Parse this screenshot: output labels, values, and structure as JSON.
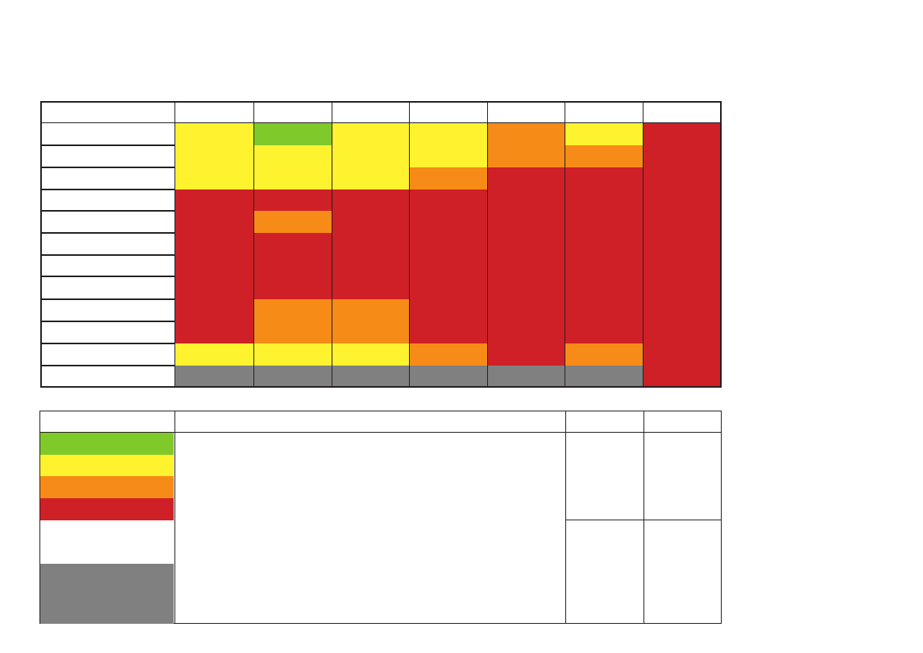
{
  "colors": {
    "green": "#7fc92a",
    "yellow": "#fff22f",
    "orange": "#f68b17",
    "red": "#d02027",
    "grey": "#808080",
    "white": "#ffffff",
    "border": "#231f20"
  },
  "matrix": {
    "column_count": 7,
    "row_count": 12,
    "columns": [
      [
        {
          "color": "yellow",
          "start": 0,
          "span": 3
        },
        {
          "color": "red",
          "start": 3,
          "span": 7
        },
        {
          "color": "yellow",
          "start": 10,
          "span": 1
        },
        {
          "color": "grey",
          "start": 11,
          "span": 1
        }
      ],
      [
        {
          "color": "green",
          "start": 0,
          "span": 1
        },
        {
          "color": "yellow",
          "start": 1,
          "span": 2
        },
        {
          "color": "red",
          "start": 3,
          "span": 1
        },
        {
          "color": "orange",
          "start": 4,
          "span": 1
        },
        {
          "color": "red",
          "start": 5,
          "span": 3
        },
        {
          "color": "orange",
          "start": 8,
          "span": 2
        },
        {
          "color": "yellow",
          "start": 10,
          "span": 1
        },
        {
          "color": "grey",
          "start": 11,
          "span": 1
        }
      ],
      [
        {
          "color": "yellow",
          "start": 0,
          "span": 3
        },
        {
          "color": "red",
          "start": 3,
          "span": 5
        },
        {
          "color": "orange",
          "start": 8,
          "span": 2
        },
        {
          "color": "yellow",
          "start": 10,
          "span": 1
        },
        {
          "color": "grey",
          "start": 11,
          "span": 1
        }
      ],
      [
        {
          "color": "yellow",
          "start": 0,
          "span": 2
        },
        {
          "color": "orange",
          "start": 2,
          "span": 1
        },
        {
          "color": "red",
          "start": 3,
          "span": 7
        },
        {
          "color": "orange",
          "start": 10,
          "span": 1
        },
        {
          "color": "grey",
          "start": 11,
          "span": 1
        }
      ],
      [
        {
          "color": "orange",
          "start": 0,
          "span": 2
        },
        {
          "color": "red",
          "start": 2,
          "span": 9
        },
        {
          "color": "grey",
          "start": 11,
          "span": 1
        }
      ],
      [
        {
          "color": "yellow",
          "start": 0,
          "span": 1
        },
        {
          "color": "orange",
          "start": 1,
          "span": 1
        },
        {
          "color": "red",
          "start": 2,
          "span": 8
        },
        {
          "color": "orange",
          "start": 10,
          "span": 1
        },
        {
          "color": "grey",
          "start": 11,
          "span": 1
        }
      ],
      [
        {
          "color": "red",
          "start": 0,
          "span": 12
        }
      ]
    ]
  },
  "legend": {
    "swatches": [
      "green",
      "yellow",
      "orange",
      "red",
      "white",
      "grey"
    ]
  }
}
